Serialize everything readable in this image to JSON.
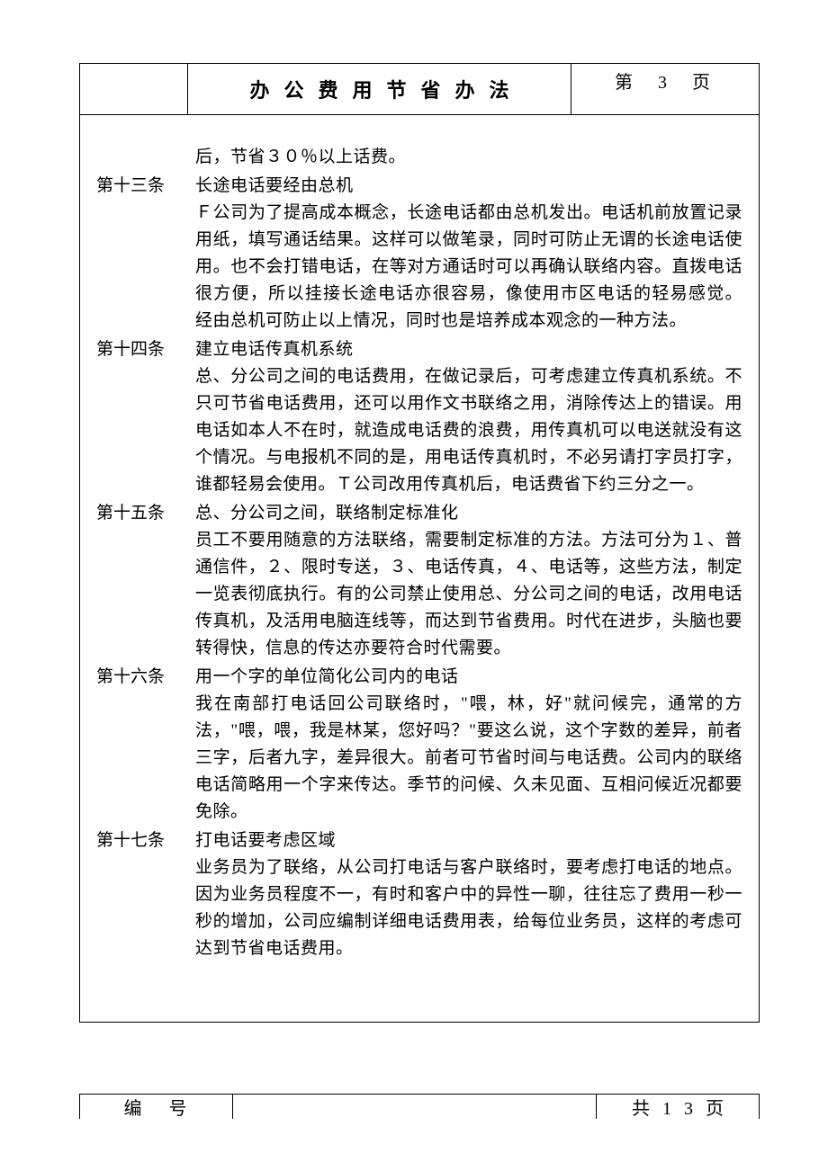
{
  "header": {
    "title": "办公费用节省办法",
    "page_label": "第3页"
  },
  "continuation_text": "后，节省３０％以上话费。",
  "articles": [
    {
      "label": "第十三条",
      "title": "长途电话要经由总机",
      "body": "Ｆ公司为了提高成本概念，长途电话都由总机发出。电话机前放置记录用纸，填写通话结果。这样可以做笔录，同时可防止无谓的长途电话使用。也不会打错电话，在等对方通话时可以再确认联络内容。直拨电话很方便，所以挂接长途电话亦很容易，像使用市区电话的轻易感觉。 经由总机可防止以上情况，同时也是培养成本观念的一种方法。"
    },
    {
      "label": "第十四条",
      "title": "建立电话传真机系统",
      "body": "总、分公司之间的电话费用，在做记录后，可考虑建立传真机系统。不只可节省电话费用，还可以用作文书联络之用，消除传达上的错误。用电话如本人不在时，就造成电话费的浪费，用传真机可以电送就没有这个情况。与电报机不同的是，用电话传真机时，不必另请打字员打字，谁都轻易会使用。Ｔ公司改用传真机后，电话费省下约三分之一。"
    },
    {
      "label": "第十五条",
      "title": "总、分公司之间，联络制定标准化",
      "body": "员工不要用随意的方法联络，需要制定标准的方法。方法可分为１、普通信件，２、限时专送，３、电话传真，４、电话等，这些方法，制定一览表彻底执行。有的公司禁止使用总、分公司之间的电话，改用电话传真机，及活用电脑连线等，而达到节省费用。时代在进步，头脑也要转得快，信息的传达亦要符合时代需要。"
    },
    {
      "label": "第十六条",
      "title": "用一个字的单位简化公司内的电话",
      "body": "我在南部打电话回公司联络时，\"喂，林，好\"就问候完，通常的方法，\"喂，喂，我是林某，您好吗？\"要这么说，这个字数的差异，前者三字，后者九字，差异很大。前者可节省时间与电话费。公司内的联络电话简略用一个字来传达。季节的问候、久未见面、互相问候近况都要免除。"
    },
    {
      "label": "第十七条",
      "title": "打电话要考虑区域",
      "body": "业务员为了联络，从公司打电话与客户联络时，要考虑打电话的地点。因为业务员程度不一，有时和客户中的异性一聊，往往忘了费用一秒一秒的增加，公司应编制详细电话费用表，给每位业务员，这样的考虑可达到节省电话费用。"
    }
  ],
  "footer": {
    "left": "编号",
    "right": "共13页"
  }
}
